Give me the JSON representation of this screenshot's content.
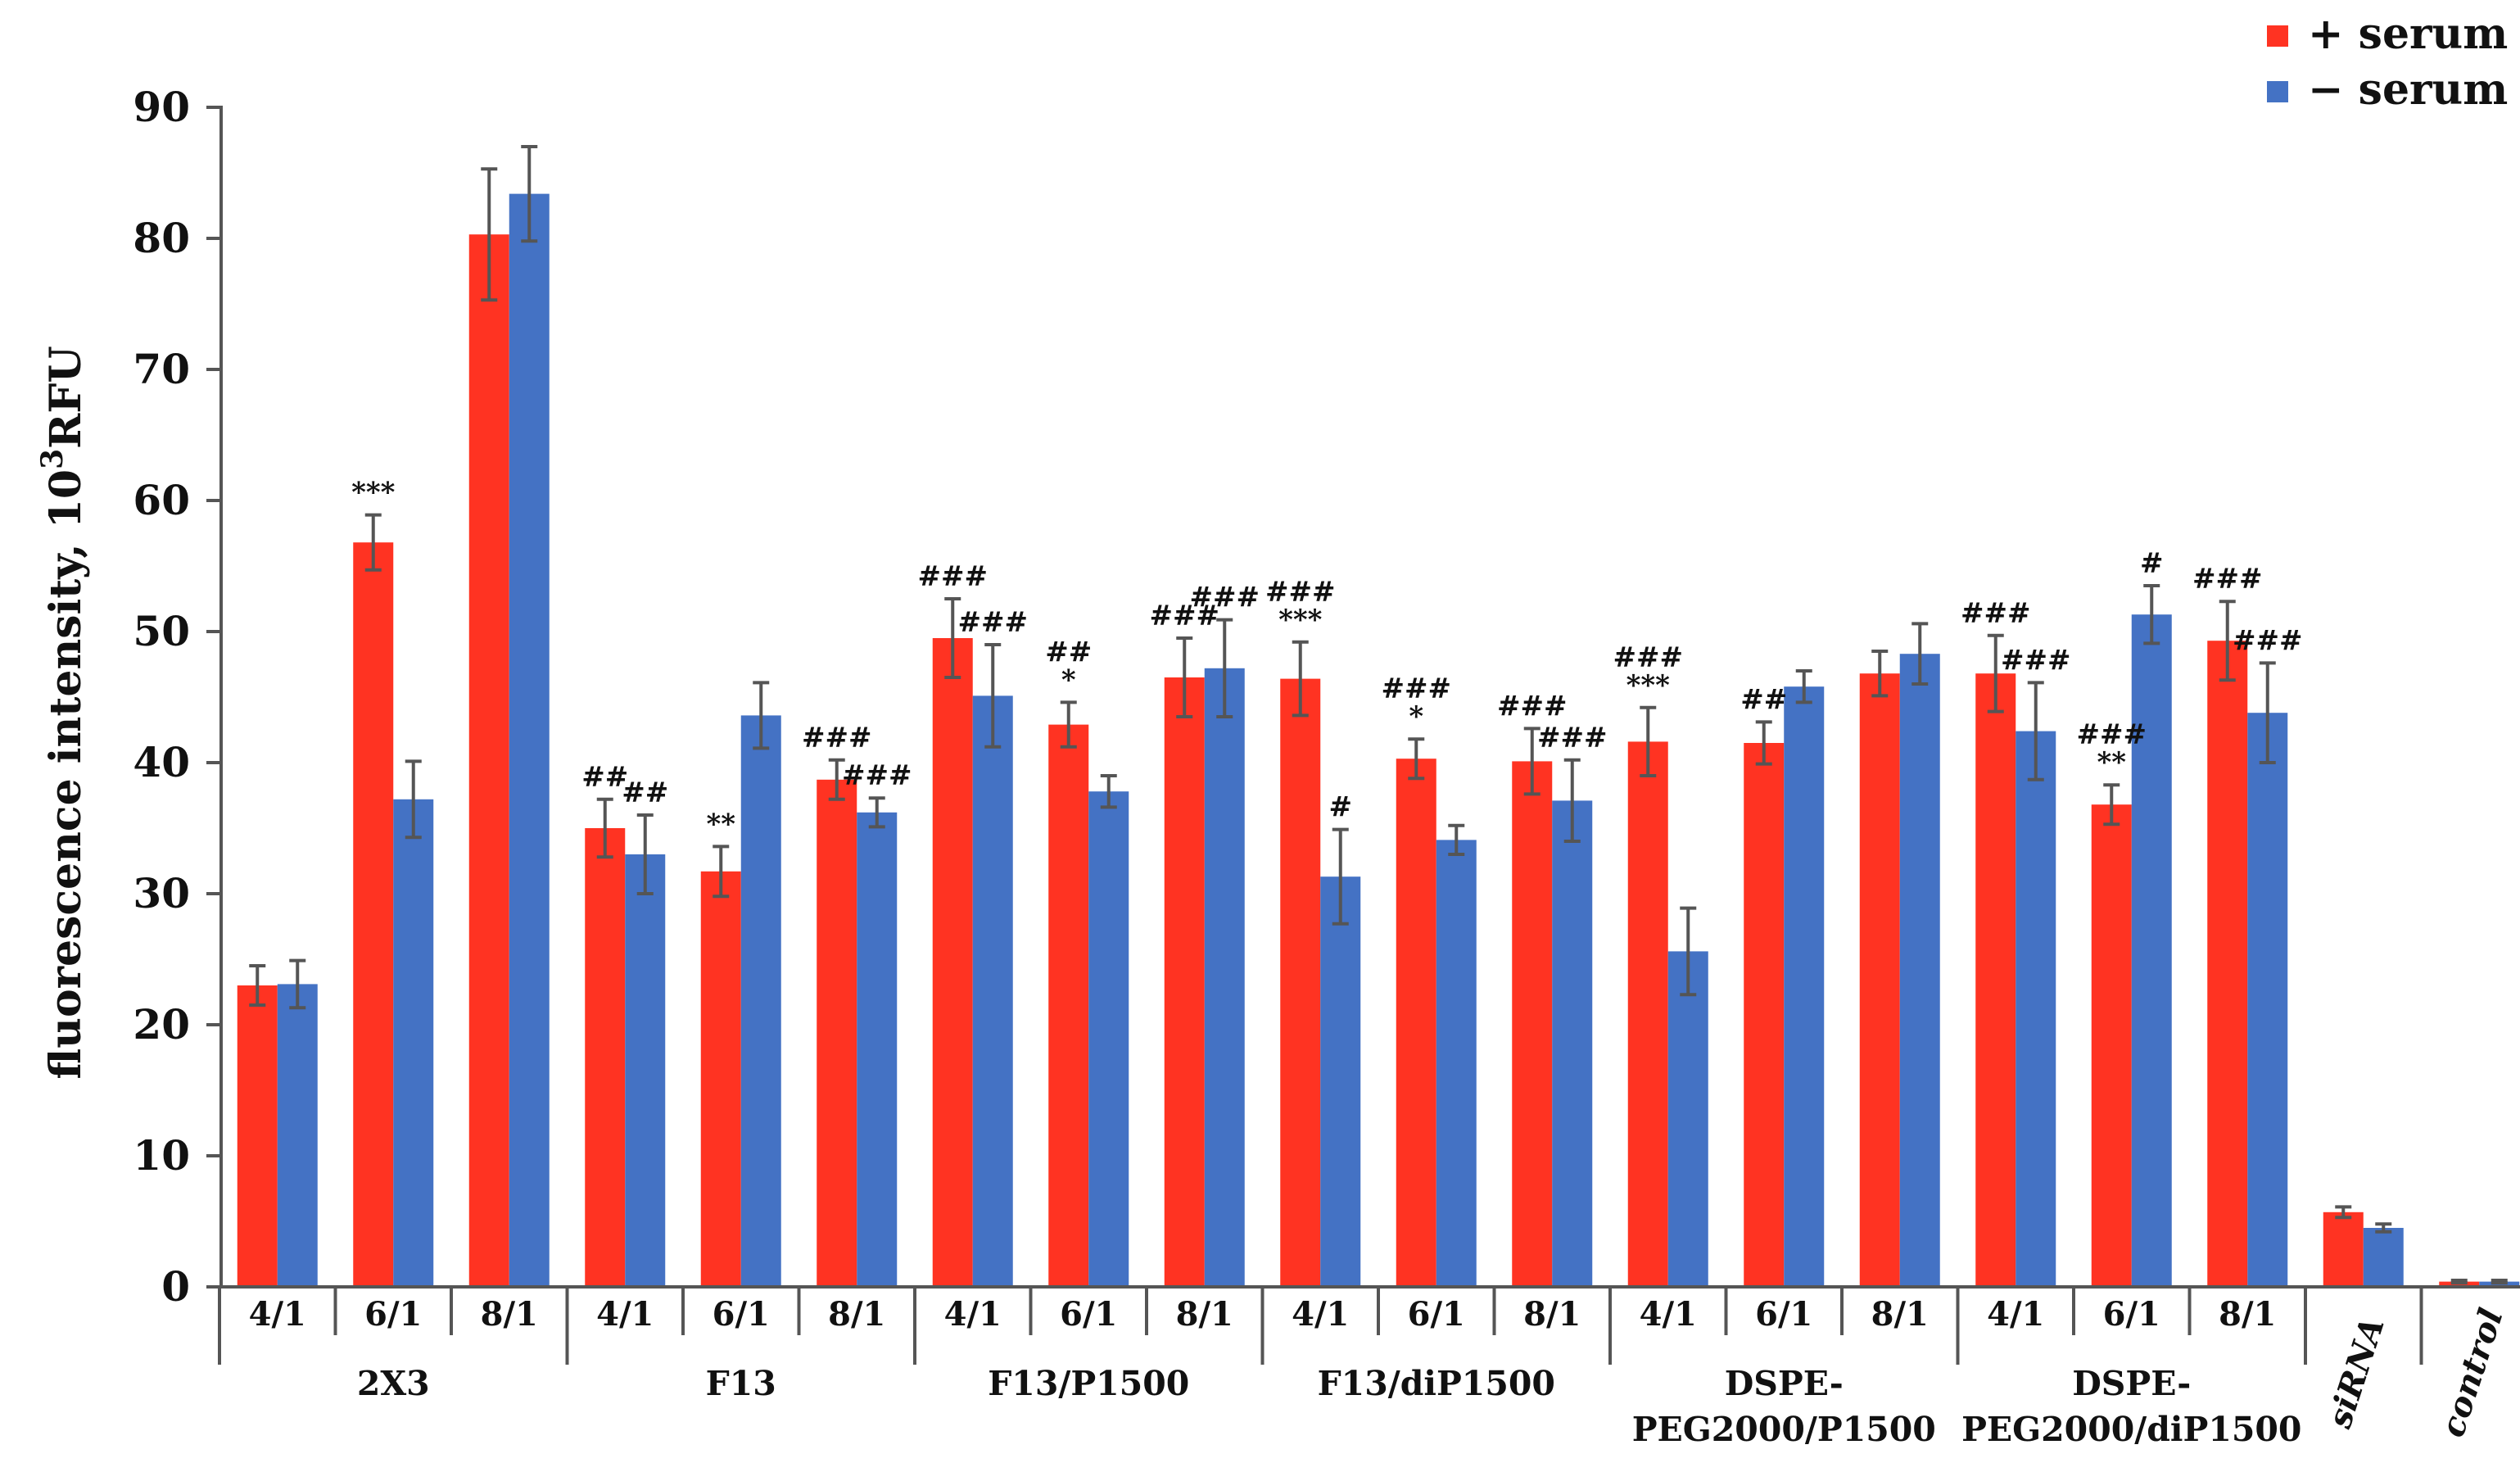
{
  "chart_data": {
    "type": "bar",
    "title": "",
    "xlabel": "",
    "ylabel": "fluorescence intensity, 10",
    "ylabel_superscript": "3",
    "ylabel_unit": "RFU",
    "ylim": [
      0,
      90
    ],
    "yticks": [
      0,
      10,
      20,
      30,
      40,
      50,
      60,
      70,
      80,
      90
    ],
    "grid": false,
    "legend_position": "top-right",
    "colors": {
      "serum_plus": "#ff3322",
      "serum_minus": "#4472c4",
      "axis": "#555555",
      "error": "#555555"
    },
    "series": [
      {
        "name": "+ serum",
        "values": [
          23,
          56.8,
          80.3,
          35,
          31.7,
          38.7,
          49.5,
          42.9,
          46.5,
          46.4,
          40.3,
          40.1,
          41.6,
          41.5,
          46.8,
          46.8,
          36.8,
          49.3,
          5.7,
          0.4
        ]
      },
      {
        "name": "− serum",
        "values": [
          23.1,
          37.2,
          83.4,
          33,
          43.6,
          36.2,
          45.1,
          37.8,
          47.2,
          31.3,
          34.1,
          37.1,
          25.6,
          45.8,
          48.3,
          42.4,
          51.3,
          43.8,
          4.5,
          0.4
        ]
      }
    ],
    "errors": [
      [
        1.5,
        2.1,
        5,
        2.2,
        1.9,
        1.5,
        3,
        1.7,
        3,
        2.8,
        1.5,
        2.5,
        2.6,
        1.6,
        1.7,
        2.9,
        1.5,
        3,
        0.4,
        0.1
      ],
      [
        1.8,
        2.9,
        3.6,
        3,
        2.5,
        1.1,
        3.9,
        1.2,
        3.7,
        3.6,
        1.1,
        3.1,
        3.3,
        1.2,
        2.3,
        3.7,
        2.2,
        3.8,
        0.3,
        0.1
      ]
    ],
    "categories": [
      "4/1",
      "6/1",
      "8/1",
      "4/1",
      "6/1",
      "8/1",
      "4/1",
      "6/1",
      "8/1",
      "4/1",
      "6/1",
      "8/1",
      "4/1",
      "6/1",
      "8/1",
      "4/1",
      "6/1",
      "8/1",
      "siRNA",
      "control"
    ],
    "groups": [
      {
        "lines": [
          "2X3"
        ],
        "span": [
          0,
          2
        ]
      },
      {
        "lines": [
          "F13"
        ],
        "span": [
          3,
          5
        ]
      },
      {
        "lines": [
          "F13/P1500"
        ],
        "span": [
          6,
          8
        ]
      },
      {
        "lines": [
          "F13/diP1500"
        ],
        "span": [
          9,
          11
        ]
      },
      {
        "lines": [
          "DSPE-",
          "PEG2000/P1500"
        ],
        "span": [
          12,
          14
        ]
      },
      {
        "lines": [
          "DSPE-",
          "PEG2000/diP1500"
        ],
        "span": [
          15,
          17
        ]
      }
    ],
    "annotations": [
      {
        "cat": 1,
        "series": 0,
        "lines": [
          "***"
        ]
      },
      {
        "cat": 3,
        "series": 0,
        "lines": [
          "##"
        ]
      },
      {
        "cat": 3,
        "series": 1,
        "lines": [
          "##"
        ]
      },
      {
        "cat": 4,
        "series": 0,
        "lines": [
          "**"
        ]
      },
      {
        "cat": 5,
        "series": 0,
        "lines": [
          "###"
        ]
      },
      {
        "cat": 5,
        "series": 1,
        "lines": [
          "###"
        ]
      },
      {
        "cat": 6,
        "series": 0,
        "lines": [
          "###"
        ]
      },
      {
        "cat": 6,
        "series": 1,
        "lines": [
          "###"
        ]
      },
      {
        "cat": 7,
        "series": 0,
        "lines": [
          "##",
          "*"
        ]
      },
      {
        "cat": 8,
        "series": 0,
        "lines": [
          "###"
        ]
      },
      {
        "cat": 8,
        "series": 1,
        "lines": [
          "###"
        ]
      },
      {
        "cat": 9,
        "series": 0,
        "lines": [
          "###",
          "***"
        ]
      },
      {
        "cat": 9,
        "series": 1,
        "lines": [
          "#"
        ]
      },
      {
        "cat": 10,
        "series": 0,
        "lines": [
          "###",
          "*"
        ]
      },
      {
        "cat": 11,
        "series": 0,
        "lines": [
          "###"
        ]
      },
      {
        "cat": 11,
        "series": 1,
        "lines": [
          "###"
        ]
      },
      {
        "cat": 12,
        "series": 0,
        "lines": [
          "###",
          "***"
        ]
      },
      {
        "cat": 13,
        "series": 0,
        "lines": [
          "##"
        ]
      },
      {
        "cat": 15,
        "series": 0,
        "lines": [
          "###"
        ]
      },
      {
        "cat": 15,
        "series": 1,
        "lines": [
          "###"
        ]
      },
      {
        "cat": 16,
        "series": 0,
        "lines": [
          "###",
          "**"
        ]
      },
      {
        "cat": 16,
        "series": 1,
        "lines": [
          "#"
        ]
      },
      {
        "cat": 17,
        "series": 0,
        "lines": [
          "###"
        ]
      },
      {
        "cat": 17,
        "series": 1,
        "lines": [
          "###"
        ]
      }
    ]
  }
}
